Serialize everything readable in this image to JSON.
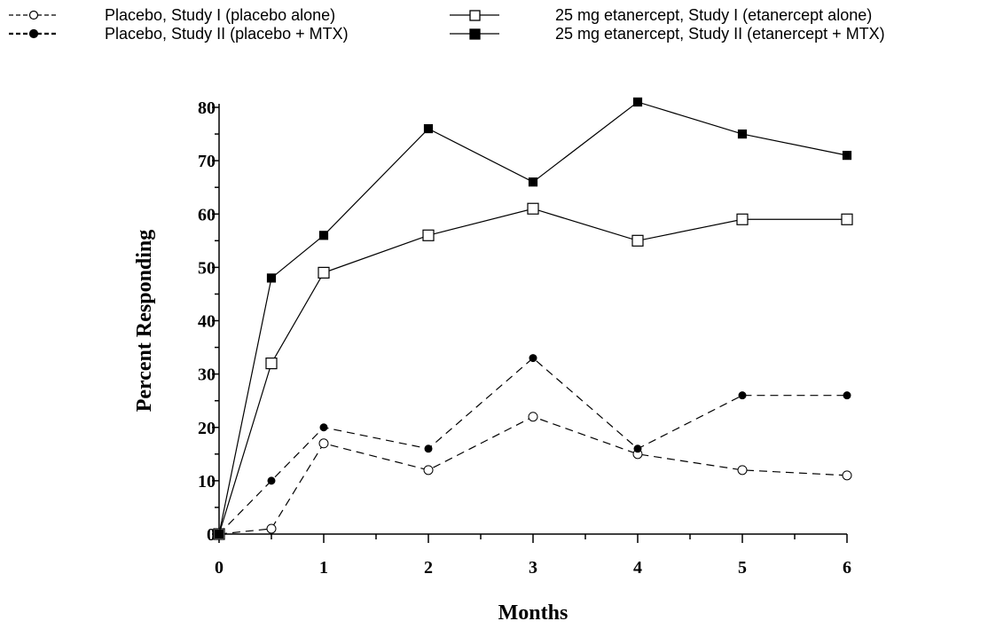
{
  "chart_data": {
    "type": "line",
    "xlabel": "Months",
    "ylabel": "Percent Responding",
    "xlim": [
      0,
      6
    ],
    "ylim": [
      0,
      80
    ],
    "x_ticks": [
      0,
      1,
      2,
      3,
      4,
      5,
      6
    ],
    "y_ticks": [
      0,
      10,
      20,
      30,
      40,
      50,
      60,
      70,
      80
    ],
    "grid": false,
    "legend_position": "top",
    "series": [
      {
        "name": "Placebo, Study I (placebo alone)",
        "line_style": "dashed",
        "marker": "open-circle",
        "x": [
          0,
          0.5,
          1,
          2,
          3,
          4,
          5,
          6
        ],
        "y": [
          0,
          1,
          17,
          12,
          22,
          15,
          12,
          11
        ]
      },
      {
        "name": "Placebo, Study II (placebo + MTX)",
        "line_style": "dashed",
        "marker": "filled-circle",
        "x": [
          0,
          0.5,
          1,
          2,
          3,
          4,
          5,
          6
        ],
        "y": [
          0,
          10,
          20,
          16,
          33,
          16,
          26,
          26
        ]
      },
      {
        "name": "25 mg etanercept, Study I (etanercept alone)",
        "line_style": "solid",
        "marker": "open-square",
        "x": [
          0,
          0.5,
          1,
          2,
          3,
          4,
          5,
          6
        ],
        "y": [
          0,
          32,
          49,
          56,
          61,
          55,
          59,
          59
        ]
      },
      {
        "name": "25 mg etanercept, Study II (etanercept + MTX)",
        "line_style": "solid",
        "marker": "filled-square",
        "x": [
          0,
          0.5,
          1,
          2,
          3,
          4,
          5,
          6
        ],
        "y": [
          0,
          48,
          56,
          76,
          66,
          81,
          75,
          71
        ]
      }
    ]
  }
}
